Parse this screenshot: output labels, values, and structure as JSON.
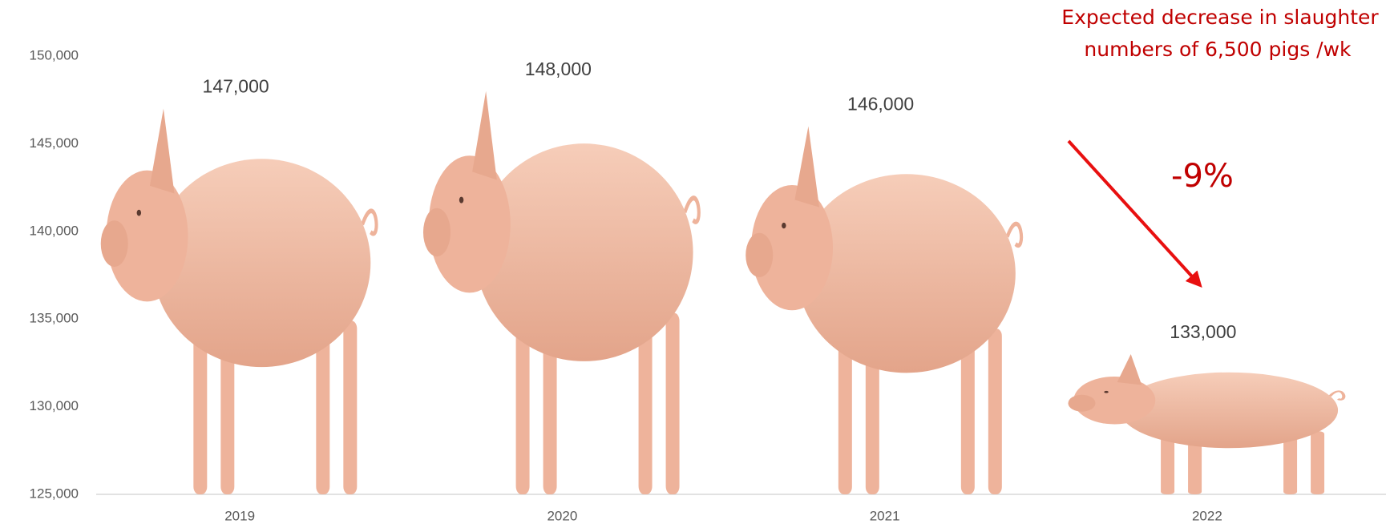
{
  "chart_data": {
    "type": "pictorial-bar",
    "categories": [
      "2019",
      "2020",
      "2021",
      "2022"
    ],
    "values": [
      147000,
      148000,
      146000,
      133000
    ],
    "value_labels": [
      "147,000",
      "148,000",
      "146,000",
      "133,000"
    ],
    "ylim": [
      125000,
      150000
    ],
    "yticks": [
      {
        "value": 125000,
        "label": "125,000"
      },
      {
        "value": 130000,
        "label": "130,000"
      },
      {
        "value": 135000,
        "label": "135,000"
      },
      {
        "value": 140000,
        "label": "140,000"
      },
      {
        "value": 145000,
        "label": "145,000"
      },
      {
        "value": 150000,
        "label": "150,000"
      }
    ],
    "color": "#eeb39b",
    "annotations": {
      "note": [
        "Expected decrease in slaughter",
        " numbers of 6,500 pigs /wk"
      ],
      "change": "-9%"
    }
  }
}
